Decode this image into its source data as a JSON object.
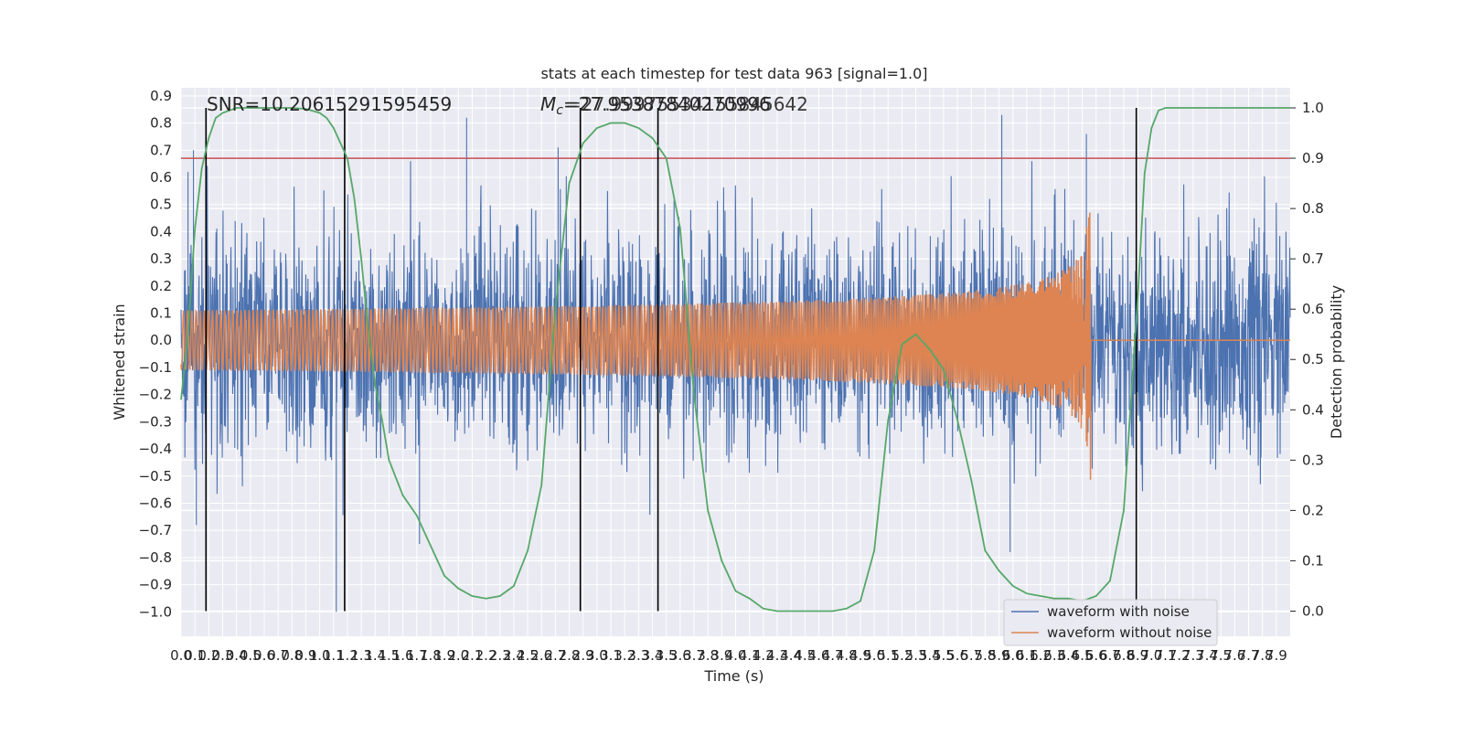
{
  "chart_data": {
    "type": "line",
    "title": "stats at each timestep for test data 963 [signal=1.0]",
    "xlabel": "Time (s)",
    "ylabel_left": "Whitened strain",
    "ylabel_right": "Detection probability",
    "xlim": [
      0,
      8.0
    ],
    "ylim_left": [
      -1.09,
      0.93
    ],
    "ylim_right": [
      -0.05,
      1.04
    ],
    "x_ticks": [
      "0.0",
      "0.1",
      "0.2",
      "0.3",
      "0.4",
      "0.5",
      "0.6",
      "0.7",
      "0.8",
      "0.9",
      "1.0",
      "1.1",
      "1.2",
      "1.3",
      "1.4",
      "1.5",
      "1.6",
      "1.7",
      "1.8",
      "1.9",
      "2.0",
      "2.1",
      "2.2",
      "2.3",
      "2.4",
      "2.5",
      "2.6",
      "2.7",
      "2.8",
      "2.9",
      "3.0",
      "3.1",
      "3.2",
      "3.3",
      "3.4",
      "3.5",
      "3.6",
      "3.7",
      "3.8",
      "3.9",
      "4.0",
      "4.1",
      "4.2",
      "4.3",
      "4.4",
      "4.5",
      "4.6",
      "4.7",
      "4.8",
      "4.9",
      "5.0",
      "5.1",
      "5.2",
      "5.3",
      "5.4",
      "5.5",
      "5.6",
      "5.7",
      "5.8",
      "5.9",
      "6.0",
      "6.1",
      "6.2",
      "6.3",
      "6.4",
      "6.5",
      "6.6",
      "6.7",
      "6.8",
      "6.9",
      "7.0",
      "7.1",
      "7.2",
      "7.3",
      "7.4",
      "7.5",
      "7.6",
      "7.7",
      "7.8",
      "7.9"
    ],
    "y_ticks_left": [
      "0.9",
      "0.8",
      "0.7",
      "0.6",
      "0.5",
      "0.4",
      "0.3",
      "0.2",
      "0.1",
      "0.0",
      "−0.1",
      "−0.2",
      "−0.3",
      "−0.4",
      "−0.5",
      "−0.6",
      "−0.7",
      "−0.8",
      "−0.9",
      "−1.0"
    ],
    "y_ticks_right": [
      "1.0",
      "0.9",
      "0.8",
      "0.7",
      "0.6",
      "0.5",
      "0.4",
      "0.3",
      "0.2",
      "0.1",
      "0.0"
    ],
    "annotations": {
      "snr": "SNR=10.20615291595459",
      "mc_symbol": "M",
      "mc_sub": "c",
      "mc_value": "=27.95387840270996",
      "mc_overlap": "=27.99975534155845642"
    },
    "threshold": 0.9,
    "vertical_lines": [
      0.18,
      1.18,
      2.88,
      3.44,
      6.89
    ],
    "series": [
      {
        "name": "waveform with noise",
        "color": "#4c72b0",
        "axis": "left",
        "envelope_peaks": [
          {
            "x": 0.05,
            "y": 0.62
          },
          {
            "x": 0.09,
            "y": 0.7
          },
          {
            "x": 0.11,
            "y": -0.68
          },
          {
            "x": 1.12,
            "y": -1.0
          },
          {
            "x": 1.12,
            "y": -0.85
          },
          {
            "x": 1.72,
            "y": -0.75
          },
          {
            "x": 2.06,
            "y": 0.82
          },
          {
            "x": 2.72,
            "y": 0.71
          },
          {
            "x": 5.92,
            "y": 0.83
          },
          {
            "x": 5.98,
            "y": -0.78
          },
          {
            "x": 6.53,
            "y": 0.76
          }
        ]
      },
      {
        "name": "waveform without noise",
        "color": "#dd8452",
        "axis": "left",
        "chirp": {
          "start": 0.0,
          "merger": 6.56,
          "peak_amplitude": 0.47,
          "min_trough": -0.54
        }
      },
      {
        "name": "",
        "color": "#55a868",
        "axis": "right",
        "x": [
          0.0,
          0.05,
          0.1,
          0.15,
          0.2,
          0.25,
          0.3,
          0.35,
          0.4,
          0.45,
          0.5,
          0.6,
          0.7,
          0.8,
          0.9,
          1.0,
          1.05,
          1.1,
          1.15,
          1.2,
          1.25,
          1.3,
          1.35,
          1.4,
          1.45,
          1.5,
          1.6,
          1.7,
          1.8,
          1.9,
          2.0,
          2.1,
          2.2,
          2.3,
          2.4,
          2.5,
          2.6,
          2.7,
          2.8,
          2.9,
          3.0,
          3.1,
          3.2,
          3.3,
          3.4,
          3.5,
          3.6,
          3.7,
          3.8,
          3.9,
          4.0,
          4.1,
          4.2,
          4.3,
          4.4,
          4.5,
          4.6,
          4.7,
          4.8,
          4.9,
          5.0,
          5.1,
          5.2,
          5.3,
          5.4,
          5.5,
          5.6,
          5.7,
          5.8,
          5.9,
          6.0,
          6.1,
          6.2,
          6.3,
          6.4,
          6.5,
          6.6,
          6.7,
          6.8,
          6.9,
          6.95,
          7.0,
          7.05,
          7.1,
          7.2,
          7.3,
          7.5,
          8.0
        ],
        "y": [
          0.42,
          0.55,
          0.76,
          0.88,
          0.94,
          0.98,
          0.99,
          0.995,
          1.0,
          1.0,
          1.0,
          1.0,
          1.0,
          1.0,
          0.998,
          0.99,
          0.98,
          0.96,
          0.93,
          0.9,
          0.82,
          0.7,
          0.56,
          0.45,
          0.38,
          0.3,
          0.23,
          0.19,
          0.13,
          0.07,
          0.045,
          0.03,
          0.025,
          0.03,
          0.05,
          0.12,
          0.25,
          0.6,
          0.85,
          0.93,
          0.96,
          0.97,
          0.97,
          0.96,
          0.94,
          0.9,
          0.76,
          0.43,
          0.2,
          0.1,
          0.04,
          0.025,
          0.005,
          0.0,
          0.0,
          0.0,
          0.0,
          0.0,
          0.005,
          0.02,
          0.12,
          0.38,
          0.53,
          0.55,
          0.52,
          0.48,
          0.38,
          0.26,
          0.12,
          0.08,
          0.05,
          0.035,
          0.03,
          0.025,
          0.025,
          0.02,
          0.03,
          0.06,
          0.2,
          0.62,
          0.87,
          0.96,
          0.995,
          1.0,
          1.0,
          1.0,
          1.0,
          1.0
        ]
      }
    ],
    "legend": {
      "position": "lower-right",
      "entries": [
        "waveform with noise",
        "waveform without noise"
      ]
    },
    "grid": true
  }
}
